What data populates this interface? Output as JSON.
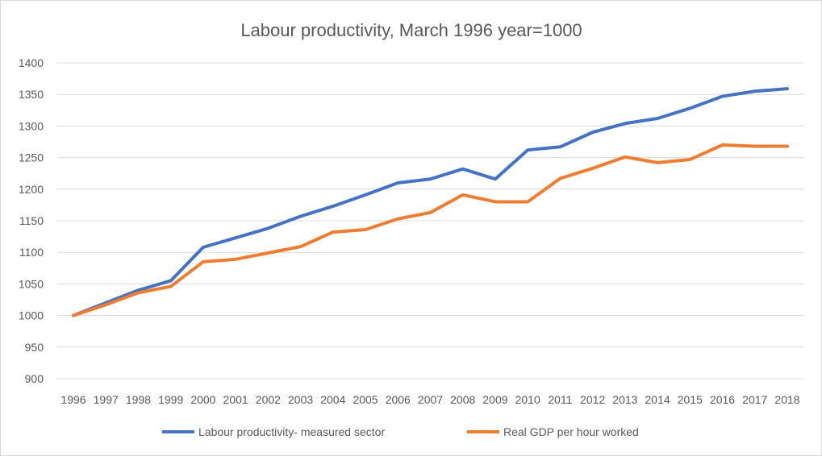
{
  "chart_data": {
    "type": "line",
    "title": "Labour productivity, March 1996 year=1000",
    "xlabel": "",
    "ylabel": "",
    "ylim": [
      900,
      1400
    ],
    "yticks": [
      900,
      950,
      1000,
      1050,
      1100,
      1150,
      1200,
      1250,
      1300,
      1350,
      1400
    ],
    "grid": true,
    "legend": "bottom",
    "x": [
      "1996",
      "1997",
      "1998",
      "1999",
      "2000",
      "2001",
      "2002",
      "2003",
      "2004",
      "2005",
      "2006",
      "2007",
      "2008",
      "2009",
      "2010",
      "2011",
      "2012",
      "2013",
      "2014",
      "2015",
      "2016",
      "2017",
      "2018"
    ],
    "series": [
      {
        "name": "Labour productivity- measured sector",
        "color": "#4472c4",
        "values": [
          1000,
          1020,
          1040,
          1055,
          1108,
          1123,
          1138,
          1157,
          1173,
          1191,
          1210,
          1216,
          1232,
          1216,
          1262,
          1267,
          1290,
          1304,
          1312,
          1328,
          1347,
          1355,
          1359
        ]
      },
      {
        "name": "Real GDP per hour worked",
        "color": "#ed7d31",
        "values": [
          1000,
          1017,
          1036,
          1046,
          1085,
          1089,
          1099,
          1109,
          1132,
          1136,
          1153,
          1163,
          1191,
          1180,
          1180,
          1217,
          1233,
          1251,
          1242,
          1247,
          1270,
          1268,
          1268
        ]
      }
    ]
  }
}
